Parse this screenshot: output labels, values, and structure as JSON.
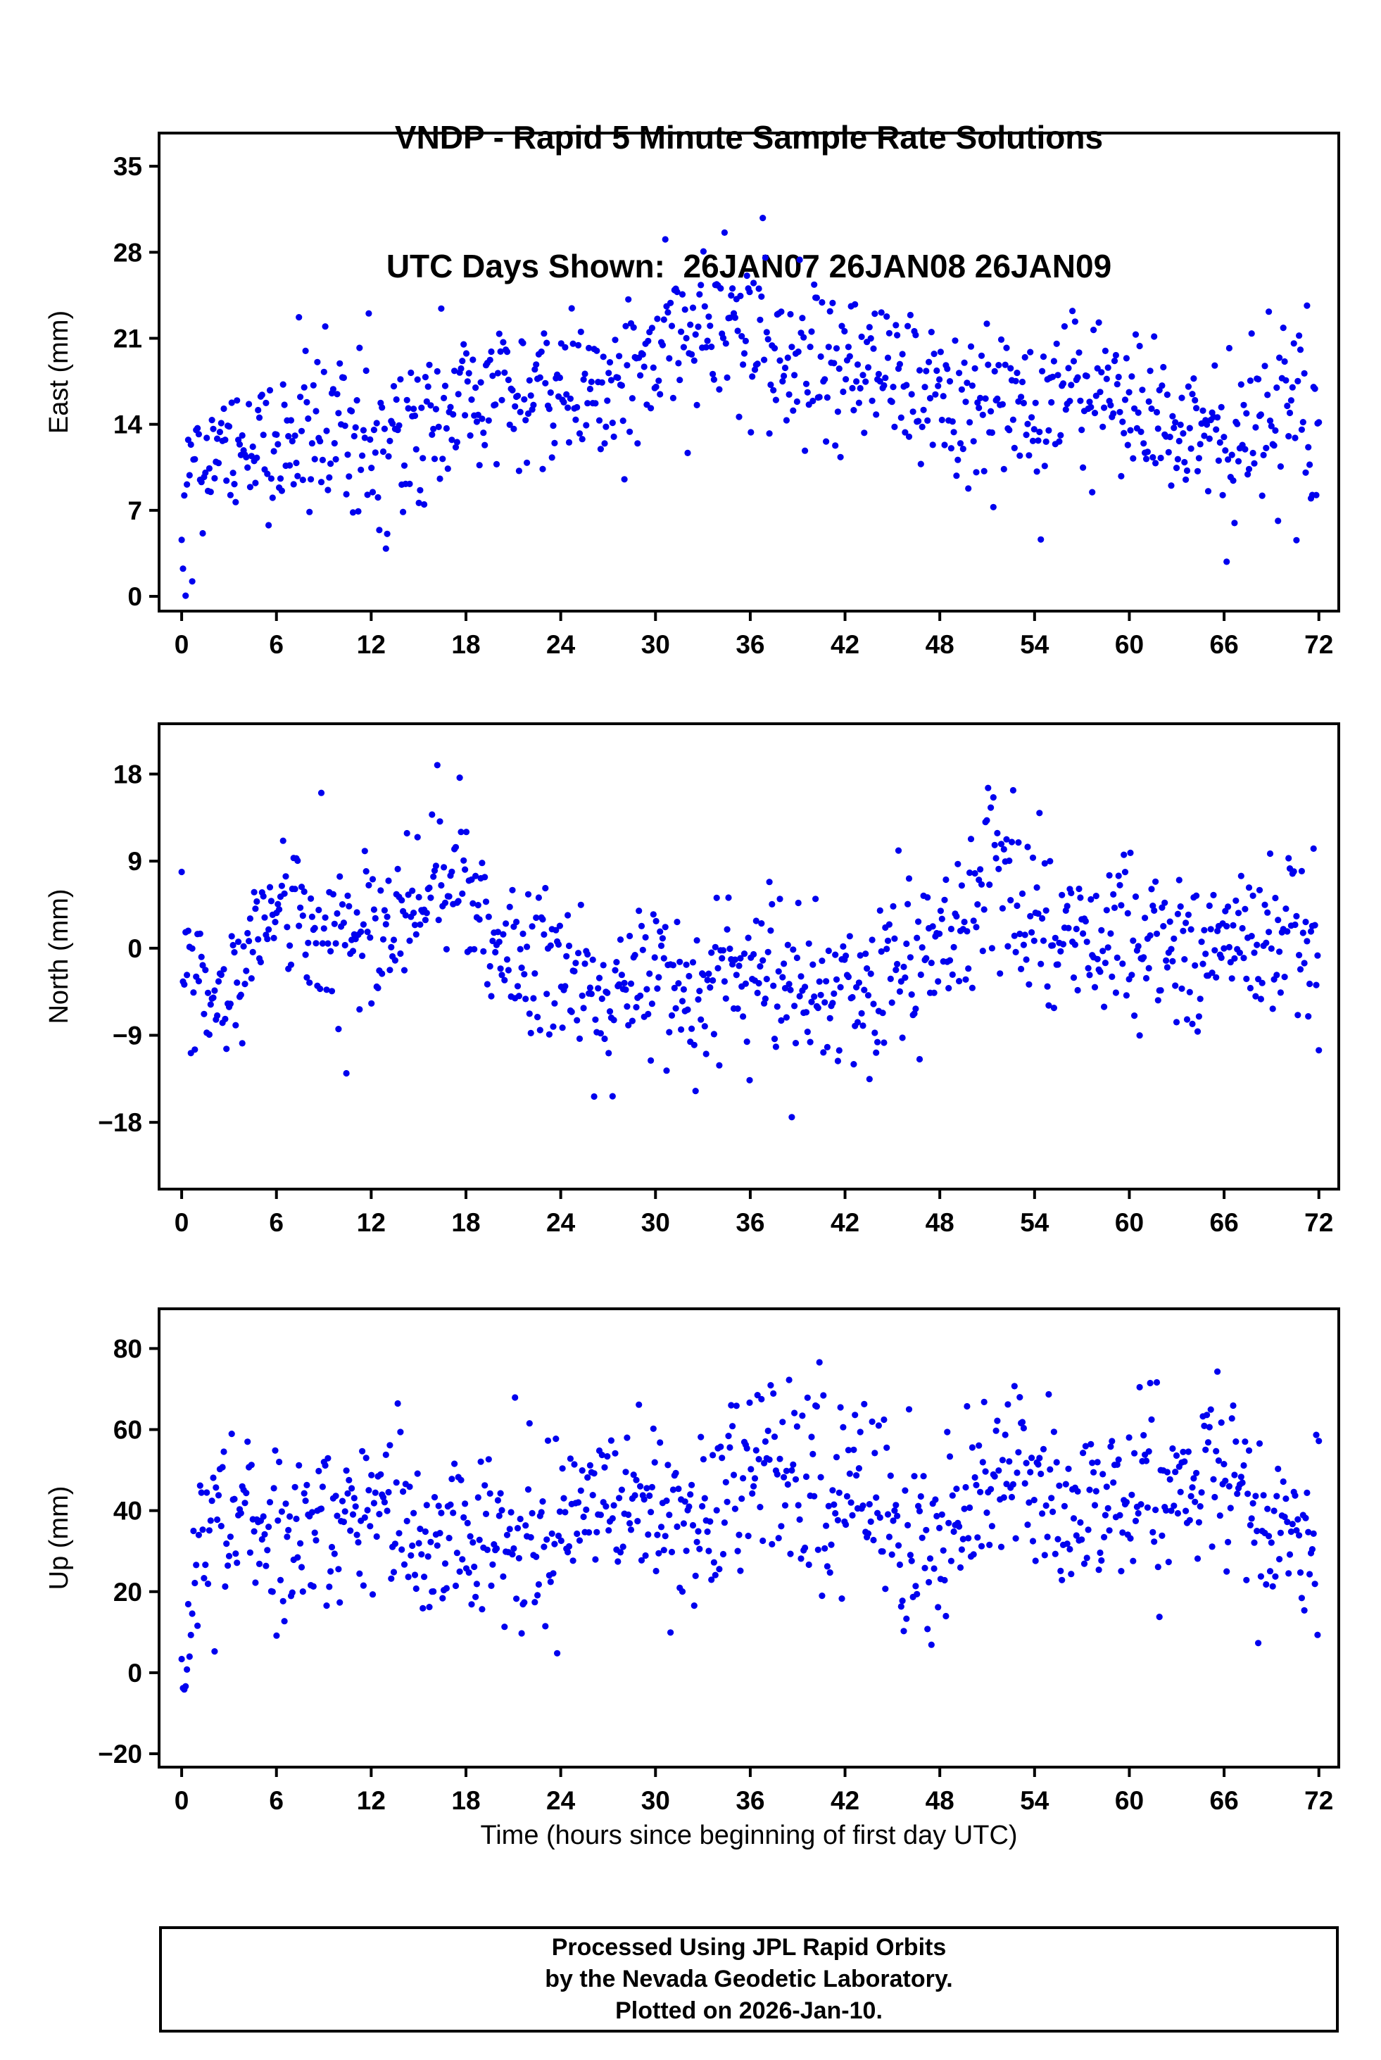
{
  "page": {
    "title_line1": "VNDP - Rapid 5 Minute Sample Rate Solutions",
    "title_line2": "UTC Days Shown:  26JAN07 26JAN08 26JAN09",
    "x_axis_label": "Time (hours since beginning of first day UTC)",
    "footer_lines": [
      "Processed Using JPL Rapid Orbits",
      "by the Nevada Geodetic Laboratory.",
      "Plotted on 2026-Jan-10."
    ]
  },
  "style": {
    "marker_color": "#0000ee",
    "marker_radius": 4.6,
    "frame_color": "#000000",
    "text_color": "#000000"
  },
  "chart_data": [
    {
      "type": "scatter",
      "title": "VNDP - Rapid 5 Minute Sample Rate Solutions",
      "subtitle": "UTC Days Shown:  26JAN07 26JAN08 26JAN09",
      "ylabel": "East (mm)",
      "xlabel": "",
      "grid": false,
      "legend": null,
      "xlim": [
        -1.43,
        73.26
      ],
      "ylim": [
        -1.2,
        37.7
      ],
      "xticks": [
        0,
        6,
        12,
        18,
        24,
        30,
        36,
        42,
        48,
        54,
        60,
        66,
        72
      ],
      "yticks": [
        0,
        7,
        14,
        21,
        28,
        35
      ],
      "n_points": 864,
      "seed": 101,
      "noise_sigma": 3.2,
      "outlier_prob": 0.03,
      "outlier_scale": 2.2,
      "trend": [
        [
          0,
          4
        ],
        [
          1,
          10
        ],
        [
          2,
          12
        ],
        [
          4,
          13
        ],
        [
          6,
          13.5
        ],
        [
          8,
          14
        ],
        [
          10,
          13.5
        ],
        [
          12,
          13
        ],
        [
          14,
          12
        ],
        [
          16,
          14
        ],
        [
          18,
          16.5
        ],
        [
          20,
          17.5
        ],
        [
          22,
          16.5
        ],
        [
          24,
          16.5
        ],
        [
          26,
          17.5
        ],
        [
          28,
          18
        ],
        [
          30,
          21
        ],
        [
          32,
          21.5
        ],
        [
          34,
          22
        ],
        [
          36,
          21
        ],
        [
          38,
          20.5
        ],
        [
          40,
          20
        ],
        [
          42,
          18.5
        ],
        [
          44,
          19
        ],
        [
          46,
          17.5
        ],
        [
          48,
          15.5
        ],
        [
          50,
          15
        ],
        [
          52,
          16
        ],
        [
          54,
          15
        ],
        [
          56,
          16.5
        ],
        [
          58,
          16
        ],
        [
          60,
          15
        ],
        [
          62,
          13.5
        ],
        [
          64,
          13
        ],
        [
          66,
          13.5
        ],
        [
          68,
          14.5
        ],
        [
          70,
          15.5
        ],
        [
          72,
          13.5
        ]
      ]
    },
    {
      "type": "scatter",
      "title": "",
      "ylabel": "North (mm)",
      "xlabel": "",
      "grid": false,
      "legend": null,
      "xlim": [
        -1.43,
        73.26
      ],
      "ylim": [
        -24.9,
        23.2
      ],
      "xticks": [
        0,
        6,
        12,
        18,
        24,
        30,
        36,
        42,
        48,
        54,
        60,
        66,
        72
      ],
      "yticks": [
        -18,
        -9,
        0,
        9,
        18
      ],
      "n_points": 864,
      "seed": 202,
      "noise_sigma": 4.0,
      "outlier_prob": 0.03,
      "outlier_scale": 2.3,
      "trend": [
        [
          0,
          0
        ],
        [
          1,
          -4
        ],
        [
          2,
          -8
        ],
        [
          3,
          -4
        ],
        [
          4,
          -1
        ],
        [
          5,
          2
        ],
        [
          6,
          5
        ],
        [
          7,
          3
        ],
        [
          8,
          1
        ],
        [
          10,
          1
        ],
        [
          12,
          1
        ],
        [
          14,
          2
        ],
        [
          16,
          6
        ],
        [
          17,
          9
        ],
        [
          18,
          5
        ],
        [
          19,
          3
        ],
        [
          20,
          0
        ],
        [
          22,
          -2
        ],
        [
          24,
          -3.5
        ],
        [
          26,
          -4
        ],
        [
          28,
          -3
        ],
        [
          30,
          -3.5
        ],
        [
          32,
          -4
        ],
        [
          34,
          -3
        ],
        [
          36,
          -3.5
        ],
        [
          38,
          -4.5
        ],
        [
          40,
          -5
        ],
        [
          42,
          -4.5
        ],
        [
          44,
          -3
        ],
        [
          46,
          -1.5
        ],
        [
          48,
          0
        ],
        [
          50,
          3
        ],
        [
          51.5,
          8
        ],
        [
          53,
          6
        ],
        [
          54,
          3
        ],
        [
          56,
          2
        ],
        [
          58,
          1.5
        ],
        [
          60,
          1
        ],
        [
          62,
          1.5
        ],
        [
          64,
          0.5
        ],
        [
          66,
          1
        ],
        [
          68,
          0.5
        ],
        [
          70,
          0
        ],
        [
          72,
          -0.5
        ]
      ]
    },
    {
      "type": "scatter",
      "title": "",
      "ylabel": "Up (mm)",
      "xlabel": "Time (hours since beginning of first day UTC)",
      "grid": false,
      "legend": null,
      "xlim": [
        -1.43,
        73.26
      ],
      "ylim": [
        -23.3,
        89.8
      ],
      "xticks": [
        0,
        6,
        12,
        18,
        24,
        30,
        36,
        42,
        48,
        54,
        60,
        66,
        72
      ],
      "yticks": [
        -20,
        0,
        20,
        40,
        60,
        80
      ],
      "n_points": 864,
      "seed": 303,
      "noise_sigma": 11,
      "outlier_prob": 0.04,
      "outlier_scale": 2.0,
      "trend": [
        [
          0,
          2
        ],
        [
          0.5,
          15
        ],
        [
          1,
          30
        ],
        [
          2,
          38
        ],
        [
          4,
          38
        ],
        [
          6,
          34
        ],
        [
          8,
          35
        ],
        [
          10,
          39
        ],
        [
          12,
          42
        ],
        [
          14,
          40
        ],
        [
          16,
          32
        ],
        [
          18,
          26
        ],
        [
          20,
          37
        ],
        [
          22,
          34
        ],
        [
          23,
          30
        ],
        [
          24,
          36
        ],
        [
          26,
          43
        ],
        [
          28,
          35
        ],
        [
          30,
          41
        ],
        [
          32,
          37
        ],
        [
          34,
          42
        ],
        [
          36,
          52
        ],
        [
          37,
          56
        ],
        [
          38,
          50
        ],
        [
          40,
          47
        ],
        [
          42,
          44
        ],
        [
          44,
          37
        ],
        [
          46,
          31
        ],
        [
          48,
          35
        ],
        [
          50,
          42
        ],
        [
          52,
          50
        ],
        [
          54,
          47
        ],
        [
          56,
          41
        ],
        [
          58,
          42
        ],
        [
          60,
          43
        ],
        [
          62,
          44
        ],
        [
          64,
          45
        ],
        [
          66,
          47
        ],
        [
          68,
          36
        ],
        [
          70,
          34
        ],
        [
          72,
          39
        ]
      ]
    }
  ]
}
